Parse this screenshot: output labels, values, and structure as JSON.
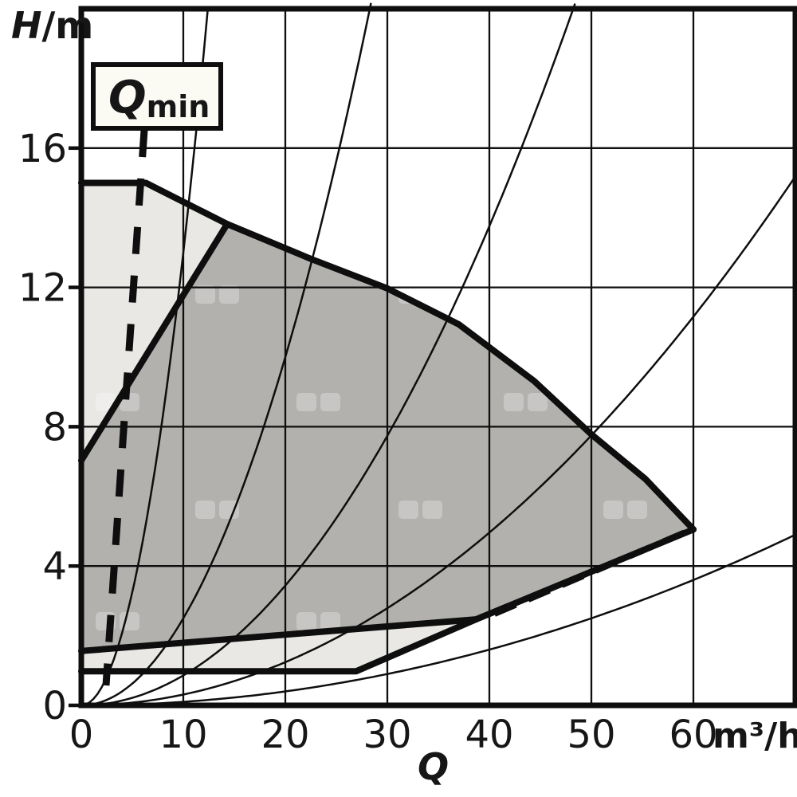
{
  "chart_data": {
    "type": "area",
    "description": "Pump duty chart: head H (m) versus flow Q (m3/h) with shaded operating fields, min/max speed boundaries, dashed Qmin limit line and thin system-characteristic parabolas",
    "x_axis": {
      "label": "Q",
      "unit": "m³/h",
      "ticks": [
        0,
        10,
        20,
        30,
        40,
        50,
        60
      ],
      "range": [
        0,
        70
      ],
      "grid": true
    },
    "y_axis": {
      "label_main": "H",
      "label_unit": "/m",
      "ticks": [
        0,
        4,
        8,
        12,
        16
      ],
      "range": [
        0,
        20
      ],
      "grid": true
    },
    "annotation": {
      "main": "Q",
      "sub": "min"
    },
    "max_curve": [
      [
        0,
        15
      ],
      [
        6.33,
        15
      ],
      [
        14.3,
        13.82
      ],
      [
        22.5,
        12.82
      ],
      [
        30,
        11.97
      ],
      [
        37,
        10.94
      ],
      [
        44.4,
        9.31
      ],
      [
        50,
        7.78
      ],
      [
        55.3,
        6.5
      ],
      [
        60,
        5.05
      ]
    ],
    "bottom_right_edge": [
      [
        60,
        5.05
      ],
      [
        38.7,
        2.47
      ],
      [
        26.95,
        0.98
      ],
      [
        0,
        0.98
      ]
    ],
    "min_curve": [
      [
        0,
        1.56
      ],
      [
        38.7,
        2.47
      ]
    ],
    "left_diagonal": [
      [
        0,
        7.03
      ],
      [
        14.3,
        13.82
      ]
    ],
    "envelope_extra_points": [
      [
        38.7,
        2.47
      ],
      [
        26.95,
        0.98
      ],
      [
        0,
        0.98
      ]
    ],
    "preferred_region_left": [
      [
        0,
        7.03
      ],
      [
        14.3,
        13.82
      ]
    ],
    "preferred_region_bottom": [
      [
        60,
        5.05
      ],
      [
        38.7,
        2.47
      ],
      [
        0,
        1.56
      ]
    ],
    "dashed_qmin_line": [
      [
        6.17,
        16.52
      ],
      [
        2.42,
        0.57
      ]
    ],
    "dashed_bottom_line": [
      [
        40.5,
        2.63
      ],
      [
        59.7,
        5.03
      ]
    ],
    "system_curves": {
      "model": "H = k * Q^2",
      "k_values": [
        0.13,
        0.025,
        0.0086,
        0.0031,
        0.001
      ]
    },
    "colors": {
      "field_light": "#e9e8e5",
      "field_dark": "#b2b1ae",
      "line": "#0e0e0e",
      "box_fill": "#fcfbf3",
      "text": "#161616"
    }
  }
}
